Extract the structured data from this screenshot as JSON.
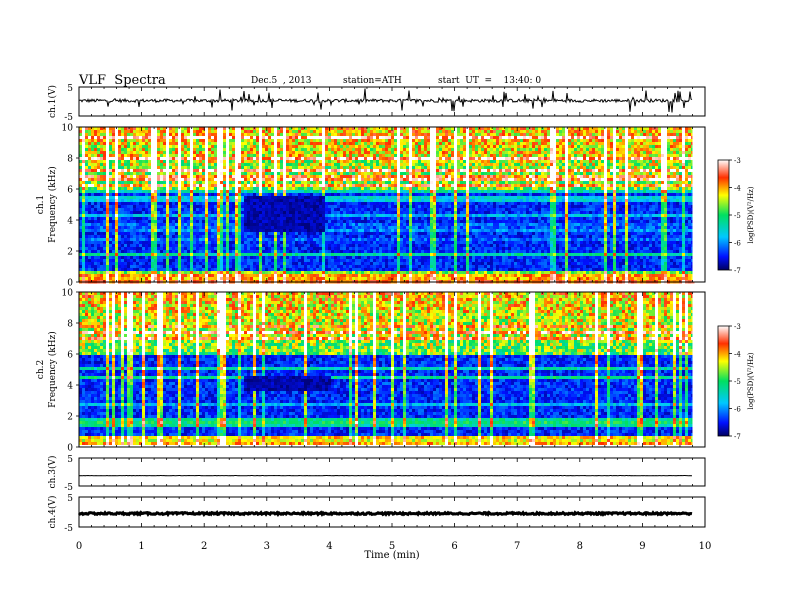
{
  "header": {
    "title": "VLF  Spectra",
    "date": "Dec.5  , 2013",
    "station": "station=ATH",
    "start": "start  UT  =    13:40: 0"
  },
  "chart_data": [
    {
      "type": "line",
      "panel": "ch1",
      "ylabel": "ch.1(V)",
      "yticks": [
        "5",
        "-5"
      ],
      "ylim": [
        -5,
        5
      ],
      "baseline": 0.3,
      "noise": 0.55,
      "spike_rate": 0.08
    },
    {
      "type": "heatmap",
      "panel": "spec1",
      "ylabel": "Frequency  (kHz)",
      "ychannel": "ch.1",
      "yticks": [
        "0",
        "2",
        "4",
        "6",
        "8",
        "10"
      ],
      "ylim": [
        0,
        10
      ],
      "xlim": [
        0,
        9.8
      ],
      "colorbar": {
        "label": "log(PSD)(V²/Hz)",
        "ticks": [
          "-3",
          "-4",
          "-5",
          "-6",
          "-7"
        ],
        "range": [
          -7,
          -3
        ]
      },
      "feature": {
        "x": [
          2.6,
          3.9
        ],
        "f": [
          3.4,
          5.6
        ]
      }
    },
    {
      "type": "heatmap",
      "panel": "spec2",
      "ylabel": "Frequency  (kHz)",
      "ychannel": "ch.2",
      "yticks": [
        "0",
        "2",
        "4",
        "6",
        "8",
        "10"
      ],
      "ylim": [
        0,
        10
      ],
      "xlim": [
        0,
        9.8
      ],
      "colorbar": {
        "label": "log(PSD)(V²/Hz)",
        "ticks": [
          "-3",
          "-4",
          "-5",
          "-6",
          "-7"
        ],
        "range": [
          -7,
          -3
        ]
      },
      "feature": {
        "x": [
          2.6,
          4.0
        ],
        "f": [
          3.7,
          4.6
        ]
      }
    },
    {
      "type": "line",
      "panel": "ch3",
      "ylabel": "ch.3(V)",
      "yticks": [
        "5",
        "-5"
      ],
      "ylim": [
        -5,
        5
      ],
      "baseline": -1.3,
      "noise": 0.05,
      "spike_rate": 0.0
    },
    {
      "type": "line",
      "panel": "ch4",
      "ylabel": "ch.4(V)",
      "yticks": [
        "5",
        "-5"
      ],
      "ylim": [
        -5,
        5
      ],
      "baseline": -0.5,
      "noise": 0.3,
      "spike_rate": 0.0
    },
    {
      "type": "axis",
      "panel": "xaxis",
      "xlabel": "Time  (min)",
      "xticks": [
        "0",
        "1",
        "2",
        "3",
        "4",
        "5",
        "6",
        "7",
        "8",
        "9",
        "10"
      ],
      "xlim": [
        0,
        10
      ],
      "data_end": 9.8
    }
  ]
}
